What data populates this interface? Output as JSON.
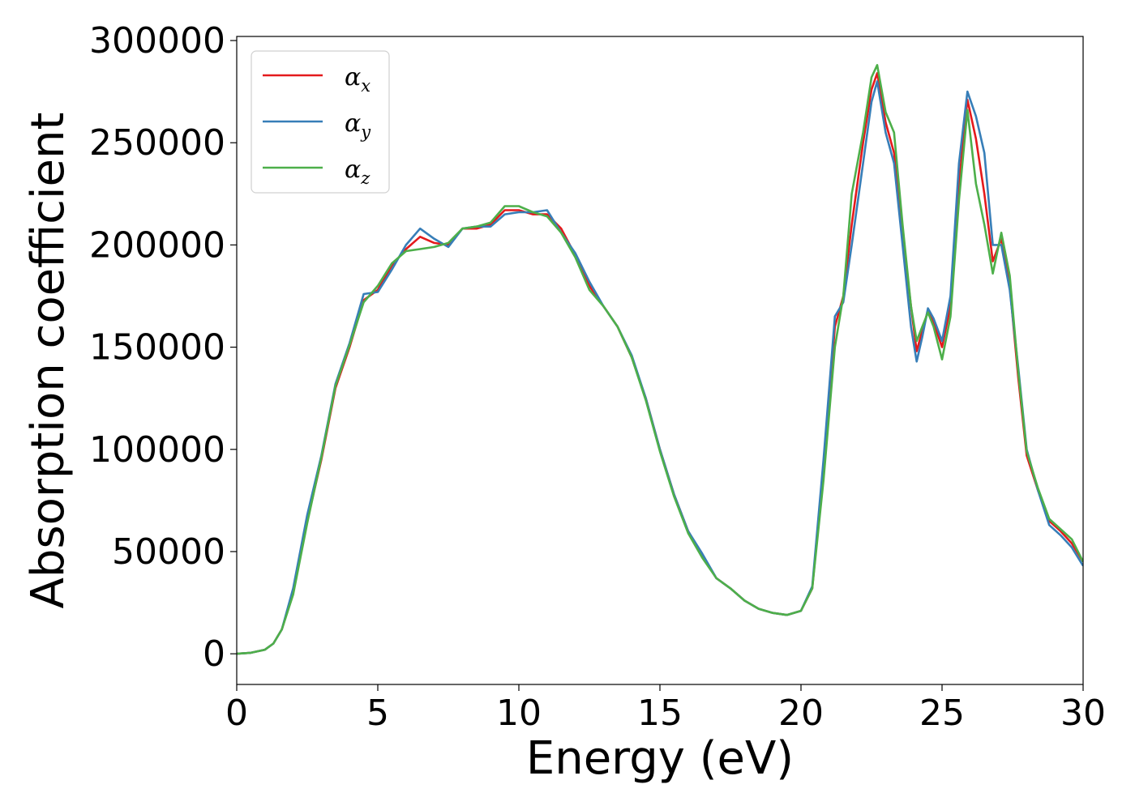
{
  "chart_data": {
    "type": "line",
    "title": "",
    "xlabel": "Energy (eV)",
    "ylabel": "Absorption coefficient",
    "xlim": [
      0,
      30
    ],
    "ylim": [
      -15000,
      302000
    ],
    "xticks": [
      0,
      5,
      10,
      15,
      20,
      25,
      30
    ],
    "yticks": [
      0,
      50000,
      100000,
      150000,
      200000,
      250000,
      300000
    ],
    "grid": false,
    "legend": {
      "position": "top-left"
    },
    "series": [
      {
        "name": "αx",
        "label_base": "α",
        "label_sub": "x",
        "color": "#e41a1c",
        "points": [
          [
            0,
            0
          ],
          [
            0.5,
            500
          ],
          [
            1,
            2000
          ],
          [
            1.3,
            5000
          ],
          [
            1.6,
            12000
          ],
          [
            2,
            30000
          ],
          [
            2.5,
            65000
          ],
          [
            3,
            95000
          ],
          [
            3.5,
            130000
          ],
          [
            4,
            150000
          ],
          [
            4.5,
            173000
          ],
          [
            5,
            178000
          ],
          [
            5.5,
            190000
          ],
          [
            6,
            198000
          ],
          [
            6.5,
            204000
          ],
          [
            7,
            201000
          ],
          [
            7.5,
            200000
          ],
          [
            8,
            208000
          ],
          [
            8.5,
            208000
          ],
          [
            9,
            210000
          ],
          [
            9.5,
            217000
          ],
          [
            10,
            217000
          ],
          [
            10.5,
            215000
          ],
          [
            11,
            215000
          ],
          [
            11.5,
            208000
          ],
          [
            12,
            195000
          ],
          [
            12.5,
            180000
          ],
          [
            13,
            170000
          ],
          [
            13.5,
            160000
          ],
          [
            14,
            145000
          ],
          [
            14.5,
            125000
          ],
          [
            15,
            100000
          ],
          [
            15.5,
            78000
          ],
          [
            16,
            60000
          ],
          [
            16.5,
            48000
          ],
          [
            17,
            37000
          ],
          [
            17.5,
            32000
          ],
          [
            18,
            26000
          ],
          [
            18.5,
            22000
          ],
          [
            19,
            20000
          ],
          [
            19.5,
            19000
          ],
          [
            20,
            21000
          ],
          [
            20.4,
            32000
          ],
          [
            20.8,
            90000
          ],
          [
            21.2,
            160000
          ],
          [
            21.5,
            175000
          ],
          [
            21.8,
            210000
          ],
          [
            22.2,
            250000
          ],
          [
            22.5,
            276000
          ],
          [
            22.7,
            284000
          ],
          [
            23,
            260000
          ],
          [
            23.3,
            245000
          ],
          [
            23.6,
            205000
          ],
          [
            23.9,
            170000
          ],
          [
            24.1,
            148000
          ],
          [
            24.3,
            158000
          ],
          [
            24.5,
            168000
          ],
          [
            24.7,
            162000
          ],
          [
            25,
            150000
          ],
          [
            25.3,
            170000
          ],
          [
            25.6,
            230000
          ],
          [
            25.9,
            271000
          ],
          [
            26.2,
            252000
          ],
          [
            26.5,
            225000
          ],
          [
            26.8,
            192000
          ],
          [
            27.1,
            203000
          ],
          [
            27.4,
            180000
          ],
          [
            27.7,
            135000
          ],
          [
            28,
            97000
          ],
          [
            28.4,
            80000
          ],
          [
            28.8,
            65000
          ],
          [
            29.2,
            60000
          ],
          [
            29.6,
            54000
          ],
          [
            30,
            45000
          ]
        ]
      },
      {
        "name": "αy",
        "label_base": "α",
        "label_sub": "y",
        "color": "#377eb8",
        "points": [
          [
            0,
            0
          ],
          [
            0.5,
            500
          ],
          [
            1,
            2000
          ],
          [
            1.3,
            5000
          ],
          [
            1.6,
            12000
          ],
          [
            2,
            32000
          ],
          [
            2.5,
            68000
          ],
          [
            3,
            97000
          ],
          [
            3.5,
            132000
          ],
          [
            4,
            152000
          ],
          [
            4.5,
            176000
          ],
          [
            5,
            177000
          ],
          [
            5.5,
            188000
          ],
          [
            6,
            200000
          ],
          [
            6.5,
            208000
          ],
          [
            7,
            203000
          ],
          [
            7.5,
            199000
          ],
          [
            8,
            208000
          ],
          [
            8.5,
            209000
          ],
          [
            9,
            209000
          ],
          [
            9.5,
            215000
          ],
          [
            10,
            216000
          ],
          [
            10.5,
            216000
          ],
          [
            11,
            217000
          ],
          [
            11.5,
            206000
          ],
          [
            12,
            196000
          ],
          [
            12.5,
            182000
          ],
          [
            13,
            170000
          ],
          [
            13.5,
            160000
          ],
          [
            14,
            146000
          ],
          [
            14.5,
            125000
          ],
          [
            15,
            100000
          ],
          [
            15.5,
            78000
          ],
          [
            16,
            60000
          ],
          [
            16.5,
            49000
          ],
          [
            17,
            37000
          ],
          [
            17.5,
            32000
          ],
          [
            18,
            26000
          ],
          [
            18.5,
            22000
          ],
          [
            19,
            20000
          ],
          [
            19.5,
            19000
          ],
          [
            20,
            21000
          ],
          [
            20.4,
            33000
          ],
          [
            20.8,
            95000
          ],
          [
            21.2,
            165000
          ],
          [
            21.5,
            172000
          ],
          [
            21.8,
            200000
          ],
          [
            22.2,
            240000
          ],
          [
            22.5,
            270000
          ],
          [
            22.7,
            280000
          ],
          [
            23,
            255000
          ],
          [
            23.3,
            240000
          ],
          [
            23.6,
            200000
          ],
          [
            23.9,
            160000
          ],
          [
            24.1,
            143000
          ],
          [
            24.3,
            155000
          ],
          [
            24.5,
            169000
          ],
          [
            24.7,
            164000
          ],
          [
            25,
            153000
          ],
          [
            25.3,
            175000
          ],
          [
            25.6,
            240000
          ],
          [
            25.9,
            275000
          ],
          [
            26.2,
            263000
          ],
          [
            26.5,
            245000
          ],
          [
            26.8,
            200000
          ],
          [
            27.1,
            200000
          ],
          [
            27.4,
            178000
          ],
          [
            27.7,
            140000
          ],
          [
            28,
            100000
          ],
          [
            28.4,
            80000
          ],
          [
            28.8,
            63000
          ],
          [
            29.2,
            58000
          ],
          [
            29.6,
            52000
          ],
          [
            30,
            43000
          ]
        ]
      },
      {
        "name": "αz",
        "label_base": "α",
        "label_sub": "z",
        "color": "#4daf4a",
        "points": [
          [
            0,
            0
          ],
          [
            0.5,
            500
          ],
          [
            1,
            2000
          ],
          [
            1.3,
            5000
          ],
          [
            1.6,
            12000
          ],
          [
            2,
            29000
          ],
          [
            2.5,
            64000
          ],
          [
            3,
            96000
          ],
          [
            3.5,
            131000
          ],
          [
            4,
            151000
          ],
          [
            4.5,
            172000
          ],
          [
            5,
            180000
          ],
          [
            5.5,
            191000
          ],
          [
            6,
            197000
          ],
          [
            6.5,
            198000
          ],
          [
            7,
            199000
          ],
          [
            7.5,
            201000
          ],
          [
            8,
            208000
          ],
          [
            8.5,
            209000
          ],
          [
            9,
            211000
          ],
          [
            9.5,
            219000
          ],
          [
            10,
            219000
          ],
          [
            10.5,
            216000
          ],
          [
            11,
            214000
          ],
          [
            11.5,
            206000
          ],
          [
            12,
            194000
          ],
          [
            12.5,
            178000
          ],
          [
            13,
            170000
          ],
          [
            13.5,
            160000
          ],
          [
            14,
            145000
          ],
          [
            14.5,
            124000
          ],
          [
            15,
            99000
          ],
          [
            15.5,
            77000
          ],
          [
            16,
            59000
          ],
          [
            16.5,
            47000
          ],
          [
            17,
            37000
          ],
          [
            17.5,
            32000
          ],
          [
            18,
            26000
          ],
          [
            18.5,
            22000
          ],
          [
            19,
            20000
          ],
          [
            19.5,
            19000
          ],
          [
            20,
            21000
          ],
          [
            20.4,
            32000
          ],
          [
            20.8,
            85000
          ],
          [
            21.2,
            150000
          ],
          [
            21.5,
            175000
          ],
          [
            21.8,
            225000
          ],
          [
            22.2,
            255000
          ],
          [
            22.5,
            282000
          ],
          [
            22.7,
            288000
          ],
          [
            23,
            265000
          ],
          [
            23.3,
            255000
          ],
          [
            23.6,
            210000
          ],
          [
            23.9,
            170000
          ],
          [
            24.1,
            153000
          ],
          [
            24.3,
            160000
          ],
          [
            24.5,
            167000
          ],
          [
            24.7,
            160000
          ],
          [
            25,
            144000
          ],
          [
            25.3,
            165000
          ],
          [
            25.6,
            222000
          ],
          [
            25.9,
            266000
          ],
          [
            26.2,
            230000
          ],
          [
            26.5,
            210000
          ],
          [
            26.8,
            186000
          ],
          [
            27.1,
            206000
          ],
          [
            27.4,
            185000
          ],
          [
            27.7,
            138000
          ],
          [
            28,
            99000
          ],
          [
            28.4,
            81000
          ],
          [
            28.8,
            66000
          ],
          [
            29.2,
            61000
          ],
          [
            29.6,
            56000
          ],
          [
            30,
            45000
          ]
        ]
      }
    ]
  }
}
